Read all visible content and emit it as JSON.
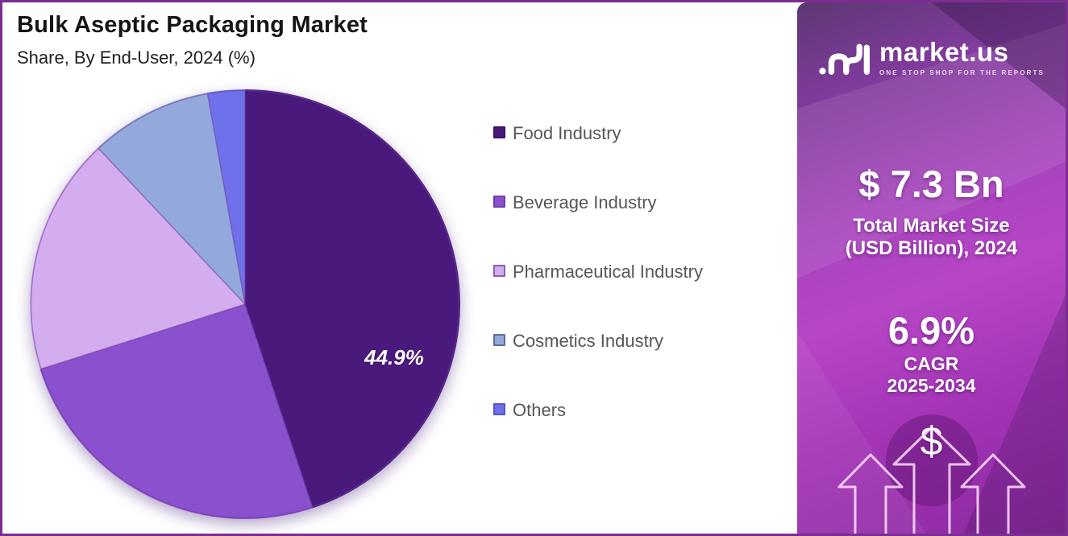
{
  "header": {
    "title": "Bulk Aseptic Packaging Market",
    "subtitle": "Share, By End-User, 2024 (%)"
  },
  "chart_data": {
    "type": "pie",
    "title": "Bulk Aseptic Packaging Market Share, By End-User, 2024 (%)",
    "categories": [
      "Food Industry",
      "Beverage Industry",
      "Pharmaceutical Industry",
      "Cosmetics Industry",
      "Others"
    ],
    "values": [
      44.9,
      25.2,
      17.9,
      9.2,
      2.8
    ],
    "colors": [
      "#4a197c",
      "#8b50ce",
      "#d3adee",
      "#93a9dc",
      "#6f71ea"
    ],
    "chip_border_colors": [
      "#3c1168",
      "#6a3fae",
      "#8a5fae",
      "#5f6b9e",
      "#5356c8"
    ],
    "slice_border_color": "rgba(110,60,160,0.55)",
    "start_angle_deg": 0,
    "direction": "clockwise",
    "legend_position": "right",
    "data_label": {
      "series": "Food Industry",
      "text": "44.9%",
      "color": "#ffffff"
    }
  },
  "sidebar": {
    "logo": {
      "brand": "market.us",
      "tagline": "ONE STOP SHOP FOR THE REPORTS"
    },
    "market_size_value": "$ 7.3 Bn",
    "market_size_label_line1": "Total Market Size",
    "market_size_label_line2": "(USD Billion), 2024",
    "cagr_value": "6.9%",
    "cagr_label_line1": "CAGR",
    "cagr_label_line2": "2025-2034",
    "dollar_symbol": "$",
    "accent_colors": {
      "gradient_top": "#5e3773",
      "gradient_mid": "#b746c6",
      "gradient_bottom": "#8c2aa0"
    }
  },
  "page": {
    "border_color": "#7c2d92",
    "background": "#ffffff"
  }
}
